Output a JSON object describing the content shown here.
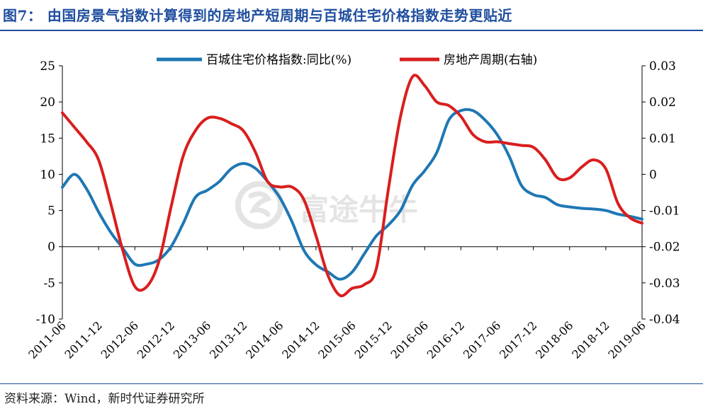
{
  "title": "图7：  由国房景气指数计算得到的房地产短周期与百城住宅价格指数走势更贴近",
  "source": "资料来源：Wind，新时代证券研究所",
  "watermark": {
    "text": "富途牛牛",
    "icon": "futu-logo-icon"
  },
  "chart_data": {
    "type": "line",
    "title": "",
    "legend_position": "top-center",
    "grid": false,
    "x_ticks": [
      "2011-06",
      "2011-12",
      "2012-06",
      "2012-12",
      "2013-06",
      "2013-12",
      "2014-06",
      "2014-12",
      "2015-06",
      "2015-12",
      "2016-06",
      "2016-12",
      "2017-06",
      "2017-12",
      "2018-06",
      "2018-12",
      "2019-06"
    ],
    "y_left": {
      "ticks": [
        "25",
        "20",
        "15",
        "10",
        "5",
        "0",
        "-5",
        "-10"
      ],
      "range": [
        -10,
        25
      ]
    },
    "y_right": {
      "ticks": [
        "0.03",
        "0.02",
        "0.01",
        "0",
        "-0.01",
        "-0.02",
        "-0.03",
        "-0.04"
      ],
      "range": [
        -0.04,
        0.03
      ]
    },
    "series": [
      {
        "name": "百城住宅价格指数:同比(%)",
        "axis": "left",
        "color": "#1f77b4",
        "points": [
          [
            "2011-06",
            8.2
          ],
          [
            "2011-08",
            10.0
          ],
          [
            "2011-10",
            8.0
          ],
          [
            "2011-12",
            4.8
          ],
          [
            "2012-02",
            2.0
          ],
          [
            "2012-04",
            -0.2
          ],
          [
            "2012-06",
            -2.4
          ],
          [
            "2012-08",
            -2.4
          ],
          [
            "2012-10",
            -1.8
          ],
          [
            "2012-12",
            0.0
          ],
          [
            "2013-02",
            3.2
          ],
          [
            "2013-04",
            6.8
          ],
          [
            "2013-06",
            7.8
          ],
          [
            "2013-08",
            9.0
          ],
          [
            "2013-10",
            10.8
          ],
          [
            "2013-12",
            11.5
          ],
          [
            "2014-02",
            10.8
          ],
          [
            "2014-04",
            9.0
          ],
          [
            "2014-06",
            6.8
          ],
          [
            "2014-08",
            3.5
          ],
          [
            "2014-10",
            -0.5
          ],
          [
            "2014-12",
            -2.5
          ],
          [
            "2015-02",
            -3.5
          ],
          [
            "2015-04",
            -4.5
          ],
          [
            "2015-06",
            -3.5
          ],
          [
            "2015-08",
            -1.0
          ],
          [
            "2015-10",
            1.5
          ],
          [
            "2015-12",
            3.0
          ],
          [
            "2016-02",
            5.0
          ],
          [
            "2016-04",
            8.5
          ],
          [
            "2016-06",
            10.5
          ],
          [
            "2016-08",
            13.0
          ],
          [
            "2016-10",
            17.5
          ],
          [
            "2016-12",
            18.8
          ],
          [
            "2017-02",
            18.8
          ],
          [
            "2017-04",
            17.5
          ],
          [
            "2017-06",
            15.5
          ],
          [
            "2017-08",
            12.5
          ],
          [
            "2017-10",
            8.5
          ],
          [
            "2017-12",
            7.2
          ],
          [
            "2018-02",
            6.8
          ],
          [
            "2018-04",
            5.8
          ],
          [
            "2018-06",
            5.5
          ],
          [
            "2018-08",
            5.3
          ],
          [
            "2018-10",
            5.2
          ],
          [
            "2018-12",
            5.0
          ],
          [
            "2019-02",
            4.5
          ],
          [
            "2019-04",
            4.2
          ],
          [
            "2019-06",
            3.8
          ]
        ]
      },
      {
        "name": "房地产周期(右轴)",
        "axis": "right",
        "color": "#d91e1e",
        "points": [
          [
            "2011-06",
            0.017
          ],
          [
            "2011-08",
            0.013
          ],
          [
            "2011-10",
            0.009
          ],
          [
            "2011-12",
            0.004
          ],
          [
            "2012-02",
            -0.008
          ],
          [
            "2012-04",
            -0.021
          ],
          [
            "2012-06",
            -0.031
          ],
          [
            "2012-08",
            -0.031
          ],
          [
            "2012-10",
            -0.024
          ],
          [
            "2012-12",
            -0.009
          ],
          [
            "2013-02",
            0.005
          ],
          [
            "2013-04",
            0.012
          ],
          [
            "2013-06",
            0.0155
          ],
          [
            "2013-08",
            0.0155
          ],
          [
            "2013-10",
            0.014
          ],
          [
            "2013-12",
            0.012
          ],
          [
            "2014-02",
            0.006
          ],
          [
            "2014-04",
            -0.002
          ],
          [
            "2014-06",
            -0.0035
          ],
          [
            "2014-08",
            -0.0035
          ],
          [
            "2014-10",
            -0.007
          ],
          [
            "2014-12",
            -0.017
          ],
          [
            "2015-02",
            -0.028
          ],
          [
            "2015-04",
            -0.0335
          ],
          [
            "2015-06",
            -0.0315
          ],
          [
            "2015-08",
            -0.0305
          ],
          [
            "2015-10",
            -0.026
          ],
          [
            "2015-12",
            -0.004
          ],
          [
            "2016-02",
            0.016
          ],
          [
            "2016-04",
            0.027
          ],
          [
            "2016-06",
            0.0245
          ],
          [
            "2016-08",
            0.02
          ],
          [
            "2016-10",
            0.019
          ],
          [
            "2016-12",
            0.016
          ],
          [
            "2017-02",
            0.011
          ],
          [
            "2017-04",
            0.009
          ],
          [
            "2017-06",
            0.009
          ],
          [
            "2017-08",
            0.0085
          ],
          [
            "2017-10",
            0.008
          ],
          [
            "2017-12",
            0.0075
          ],
          [
            "2018-02",
            0.004
          ],
          [
            "2018-04",
            -0.001
          ],
          [
            "2018-06",
            -0.001
          ],
          [
            "2018-08",
            0.002
          ],
          [
            "2018-10",
            0.004
          ],
          [
            "2018-12",
            0.0015
          ],
          [
            "2019-02",
            -0.008
          ],
          [
            "2019-04",
            -0.012
          ],
          [
            "2019-06",
            -0.0135
          ]
        ]
      }
    ]
  }
}
